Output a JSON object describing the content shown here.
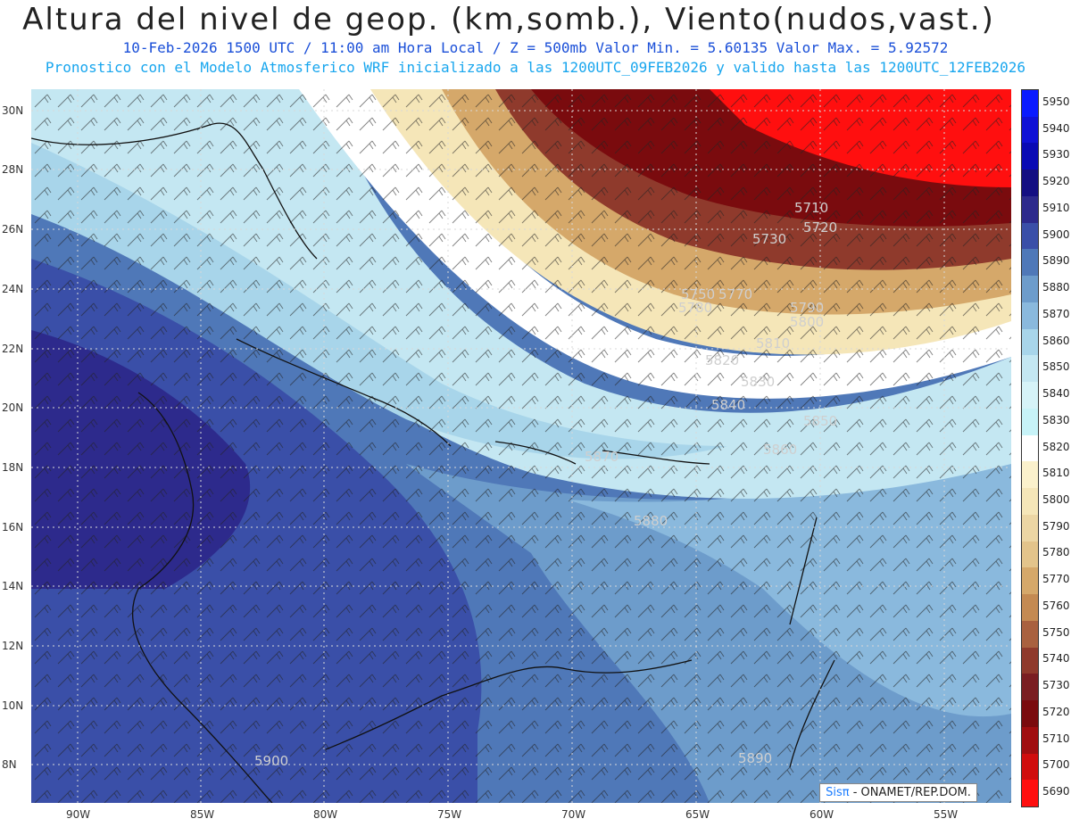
{
  "title": "Altura del nivel de geop. (km,somb.), Viento(nudos,vast.)",
  "subtitle1": "10-Feb-2026  1500 UTC / 11:00 am Hora Local / Z = 500mb   Valor Min. = 5.60135  Valor Max. = 5.92572",
  "subtitle2": "Pronostico con el Modelo Atmosferico WRF inicializado a las 1200UTC_09FEB2026 y valido hasta las  1200UTC_12FEB2026",
  "credit": {
    "brand": "Sisπ",
    "text": " - ONAMET/REP.DOM."
  },
  "y_axis_labels": [
    "30N",
    "28N",
    "26N",
    "24N",
    "22N",
    "20N",
    "18N",
    "16N",
    "14N",
    "12N",
    "10N",
    "8N"
  ],
  "x_axis_labels": [
    "90W",
    "85W",
    "80W",
    "75W",
    "70W",
    "65W",
    "60W",
    "55W"
  ],
  "contour_labels": [
    "5710",
    "5720",
    "5730",
    "5750",
    "5770",
    "5780",
    "5790",
    "5800",
    "5810",
    "5820",
    "5830",
    "5840",
    "5850",
    "5860",
    "5870",
    "5880",
    "5890",
    "5900"
  ],
  "colorbar": {
    "levels": [
      "5950",
      "5940",
      "5930",
      "5920",
      "5910",
      "5900",
      "5890",
      "5880",
      "5870",
      "5860",
      "5850",
      "5840",
      "5830",
      "5820",
      "5810",
      "5800",
      "5790",
      "5780",
      "5770",
      "5760",
      "5750",
      "5740",
      "5730",
      "5720",
      "5710",
      "5700",
      "5690"
    ],
    "colors": [
      "#0a1aff",
      "#1011d6",
      "#0a0ab4",
      "#140f82",
      "#2d2a8c",
      "#3a4fa8",
      "#4f78b8",
      "#6d9ccb",
      "#8ab9dd",
      "#a8d5ea",
      "#c4e7f2",
      "#d6f3f8",
      "#c7f3f8",
      "#ffffff",
      "#fbf1cc",
      "#f5e6b8",
      "#ecd6a4",
      "#e3c48b",
      "#d5a86a",
      "#c48a52",
      "#a9613f",
      "#8f3a2c",
      "#7a1e22",
      "#7a0b0e",
      "#a00e10",
      "#d00d0d",
      "#ff0f0f"
    ]
  }
}
